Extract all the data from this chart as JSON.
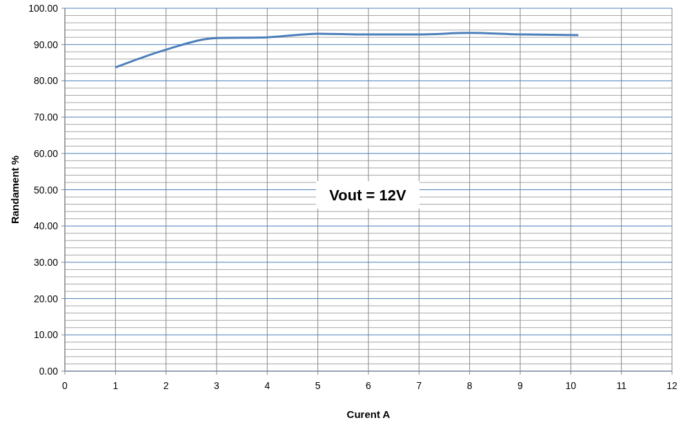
{
  "chart_data": {
    "type": "line",
    "xlabel": "Curent A",
    "ylabel": "Randament %",
    "annotations": [
      "Vout = 12V"
    ],
    "x": [
      1,
      2,
      3,
      4,
      5,
      6,
      7,
      8,
      9,
      10.15
    ],
    "series": [
      {
        "color": "#4a7ebb",
        "values": [
          83.7,
          88.6,
          91.8,
          92.0,
          93.0,
          92.8,
          92.8,
          93.2,
          92.8,
          92.6
        ]
      }
    ],
    "xlim": [
      0,
      12
    ],
    "xticks": [
      0,
      1,
      2,
      3,
      4,
      5,
      6,
      7,
      8,
      9,
      10,
      11,
      12
    ],
    "ylim": [
      0,
      100
    ],
    "yticks": [
      {
        "value": 0,
        "label": "0.00"
      },
      {
        "value": 10,
        "label": "10.00"
      },
      {
        "value": 20,
        "label": "20.00"
      },
      {
        "value": 30,
        "label": "30.00"
      },
      {
        "value": 40,
        "label": "40.00"
      },
      {
        "value": 50,
        "label": "50.00"
      },
      {
        "value": 60,
        "label": "60.00"
      },
      {
        "value": 70,
        "label": "70.00"
      },
      {
        "value": 80,
        "label": "80.00"
      },
      {
        "value": 90,
        "label": "90.00"
      },
      {
        "value": 100,
        "label": "100.00"
      }
    ],
    "grid": true,
    "marker": "none",
    "line_style": "solid"
  }
}
